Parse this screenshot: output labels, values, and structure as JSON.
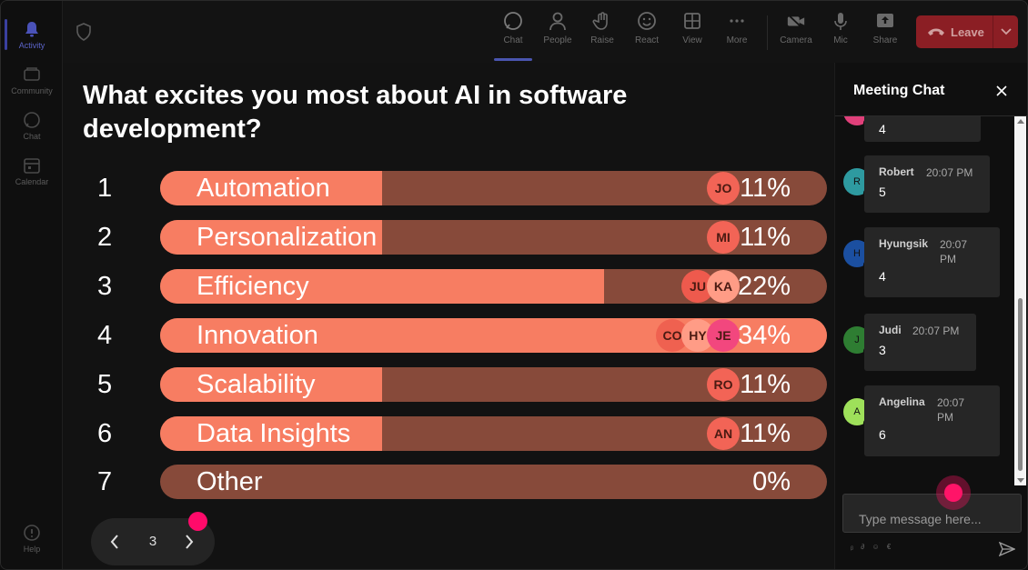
{
  "rail": {
    "items": [
      {
        "label": "Activity",
        "icon": "bell-icon"
      },
      {
        "label": "Community",
        "icon": "community-icon"
      },
      {
        "label": "Chat",
        "icon": "chat-icon"
      },
      {
        "label": "Calendar",
        "icon": "calendar-icon"
      }
    ],
    "help_label": "Help"
  },
  "toolbar": {
    "items": [
      {
        "label": "Chat",
        "icon": "chat-icon"
      },
      {
        "label": "People",
        "icon": "people-icon"
      },
      {
        "label": "Raise",
        "icon": "hand-icon"
      },
      {
        "label": "React",
        "icon": "smile-icon"
      },
      {
        "label": "View",
        "icon": "grid-icon"
      },
      {
        "label": "More",
        "icon": "more-icon"
      },
      {
        "label": "Camera",
        "icon": "camera-icon"
      },
      {
        "label": "Mic",
        "icon": "mic-icon"
      },
      {
        "label": "Share",
        "icon": "share-icon"
      }
    ],
    "leave_label": "Leave"
  },
  "poll": {
    "question": "What excites you most about AI in software development?",
    "options": [
      {
        "num": "1",
        "label": "Automation",
        "percent_label": "11%",
        "percent": 11,
        "voters": [
          {
            "initials": "JO",
            "color": "#f26456"
          }
        ]
      },
      {
        "num": "2",
        "label": "Personalization",
        "percent_label": "11%",
        "percent": 11,
        "voters": [
          {
            "initials": "MI",
            "color": "#f26456"
          }
        ]
      },
      {
        "num": "3",
        "label": "Efficiency",
        "percent_label": "22%",
        "percent": 22,
        "voters": [
          {
            "initials": "JU",
            "color": "#ee5a4d"
          },
          {
            "initials": "KA",
            "color": "#ff9c86"
          }
        ]
      },
      {
        "num": "4",
        "label": "Innovation",
        "percent_label": "34%",
        "percent": 34,
        "voters": [
          {
            "initials": "CO",
            "color": "#ef6150"
          },
          {
            "initials": "HY",
            "color": "#ff9c86"
          },
          {
            "initials": "JE",
            "color": "#f2477e"
          }
        ]
      },
      {
        "num": "5",
        "label": "Scalability",
        "percent_label": "11%",
        "percent": 11,
        "voters": [
          {
            "initials": "RO",
            "color": "#f26456"
          }
        ]
      },
      {
        "num": "6",
        "label": "Data Insights",
        "percent_label": "11%",
        "percent": 11,
        "voters": [
          {
            "initials": "AN",
            "color": "#f26456"
          }
        ]
      },
      {
        "num": "7",
        "label": "Other",
        "percent_label": "0%",
        "percent": 0,
        "voters": []
      }
    ],
    "page": "3"
  },
  "chat": {
    "title": "Meeting Chat",
    "messages": [
      {
        "initial": "",
        "name": "",
        "time": "",
        "text": "4",
        "avatar_color": "#e0407a"
      },
      {
        "initial": "R",
        "name": "Robert",
        "time": "20:07 PM",
        "text": "5",
        "avatar_color": "#2e9aa0"
      },
      {
        "initial": "H",
        "name": "Hyungsik",
        "time": "20:07 PM",
        "text": "4",
        "avatar_color": "#1b4fa0"
      },
      {
        "initial": "J",
        "name": "Judi",
        "time": "20:07 PM",
        "text": "3",
        "avatar_color": "#2e7d32"
      },
      {
        "initial": "A",
        "name": "Angelina",
        "time": "20:07 PM",
        "text": "6",
        "avatar_color": "#9ee05a"
      }
    ],
    "input_placeholder": "Type message here...",
    "format_icons": "ᵦ ∂ ☺ €"
  },
  "colors": {
    "bar_fill": "#f77d62",
    "bar_track": "#874a3a",
    "leave_button": "#8b1e24",
    "accent": "#4a55b0"
  }
}
